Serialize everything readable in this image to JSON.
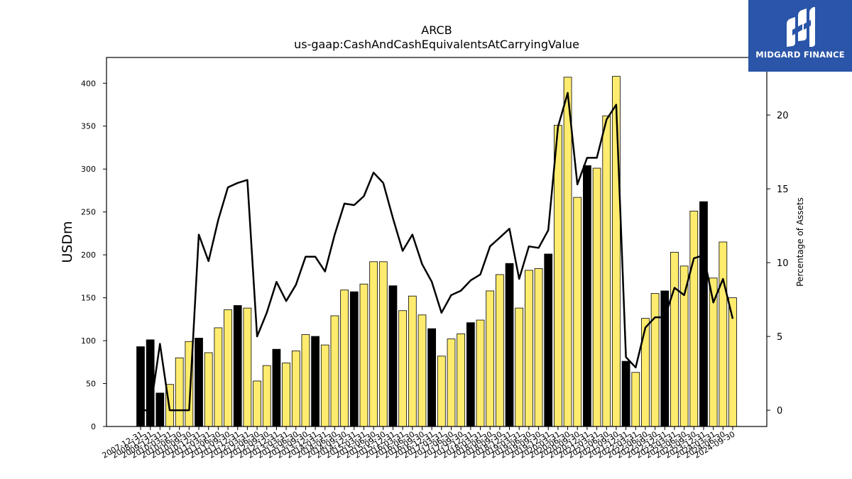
{
  "chart_data": {
    "type": "bar",
    "title": "ARCB",
    "subtitle": "us-gaap:CashAndCashEquivalentsAtCarryingValue",
    "ylabel": "USDm",
    "y2label": "Percentage of Assets",
    "ylim": [
      0,
      430
    ],
    "y2lim": [
      -1.1,
      23.9
    ],
    "yticks": [
      0,
      50,
      100,
      150,
      200,
      250,
      300,
      350,
      400
    ],
    "y2ticks": [
      0,
      5,
      10,
      15,
      20
    ],
    "categories": [
      "2007-12-31",
      "2008-12-31",
      "2009-12-31",
      "2010-03-31",
      "2010-06-30",
      "2010-09-30",
      "2010-12-31",
      "2011-03-31",
      "2011-06-30",
      "2011-09-30",
      "2011-12-31",
      "2012-03-31",
      "2012-06-30",
      "2012-09-30",
      "2012-12-31",
      "2013-03-31",
      "2013-06-30",
      "2013-09-30",
      "2013-12-31",
      "2014-03-31",
      "2014-06-30",
      "2014-09-30",
      "2014-12-31",
      "2015-03-31",
      "2015-06-30",
      "2015-09-30",
      "2015-12-31",
      "2016-03-31",
      "2016-06-30",
      "2016-09-30",
      "2016-12-31",
      "2017-03-31",
      "2017-06-30",
      "2017-09-30",
      "2017-12-31",
      "2018-03-31",
      "2018-06-30",
      "2018-09-30",
      "2018-12-31",
      "2019-03-31",
      "2019-06-30",
      "2019-09-30",
      "2019-12-31",
      "2020-03-31",
      "2020-06-30",
      "2020-09-30",
      "2020-12-31",
      "2021-03-31",
      "2021-06-30",
      "2021-09-30",
      "2021-12-31",
      "2022-03-31",
      "2022-06-30",
      "2022-09-30",
      "2022-12-31",
      "2023-03-31",
      "2023-06-30",
      "2023-09-30",
      "2023-12-31",
      "2024-03-31",
      "2024-06-30",
      "2024-09-30"
    ],
    "series": [
      {
        "name": "",
        "kind": "bar",
        "values": [
          93,
          101,
          39,
          49,
          80,
          99,
          103,
          86,
          115,
          136,
          141,
          138,
          53,
          71,
          90,
          74,
          88,
          107,
          105,
          95,
          129,
          159,
          157,
          166,
          192,
          192,
          164,
          135,
          152,
          130,
          114,
          82,
          102,
          108,
          121,
          124,
          158,
          177,
          190,
          138,
          182,
          184,
          201,
          351,
          407,
          267,
          304,
          301,
          362,
          408,
          76,
          63,
          126,
          155,
          158,
          203,
          187,
          251,
          262,
          173,
          215,
          150
        ],
        "is_year_end": [
          true,
          true,
          true,
          false,
          false,
          false,
          true,
          false,
          false,
          false,
          true,
          false,
          false,
          false,
          true,
          false,
          false,
          false,
          true,
          false,
          false,
          false,
          true,
          false,
          false,
          false,
          true,
          false,
          false,
          false,
          true,
          false,
          false,
          false,
          true,
          false,
          false,
          false,
          true,
          false,
          false,
          false,
          true,
          false,
          false,
          false,
          true,
          false,
          false,
          false,
          true,
          false,
          false,
          false,
          true,
          false,
          false,
          false,
          true,
          false,
          false,
          false
        ]
      },
      {
        "name": "",
        "kind": "line",
        "axis": "right",
        "values": [
          0.0,
          0.0,
          4.5,
          0.0,
          0.0,
          0.0,
          11.9,
          10.1,
          12.9,
          15.1,
          15.4,
          15.6,
          5.0,
          6.6,
          8.7,
          7.4,
          8.5,
          10.4,
          10.4,
          9.4,
          11.9,
          14.0,
          13.9,
          14.5,
          16.1,
          15.4,
          13.0,
          10.8,
          11.9,
          9.9,
          8.7,
          6.6,
          7.8,
          8.1,
          8.8,
          9.2,
          11.1,
          11.7,
          12.3,
          8.9,
          11.1,
          11.0,
          12.2,
          19.2,
          21.5,
          15.3,
          17.1,
          17.1,
          19.7,
          20.7,
          3.6,
          2.9,
          5.6,
          6.3,
          6.3,
          8.3,
          7.8,
          10.3,
          10.5,
          7.3,
          8.9,
          6.2
        ]
      }
    ],
    "colors": {
      "bar_year_end": "#000000",
      "bar_quarter": "#ffec6e",
      "bar_edge": "#000000",
      "line": "#000000"
    },
    "grid": false,
    "legend": "none"
  },
  "logo": {
    "text": "MIDGARD FINANCE",
    "icon": "midgard-logo-icon",
    "color": "#2a55a8"
  }
}
